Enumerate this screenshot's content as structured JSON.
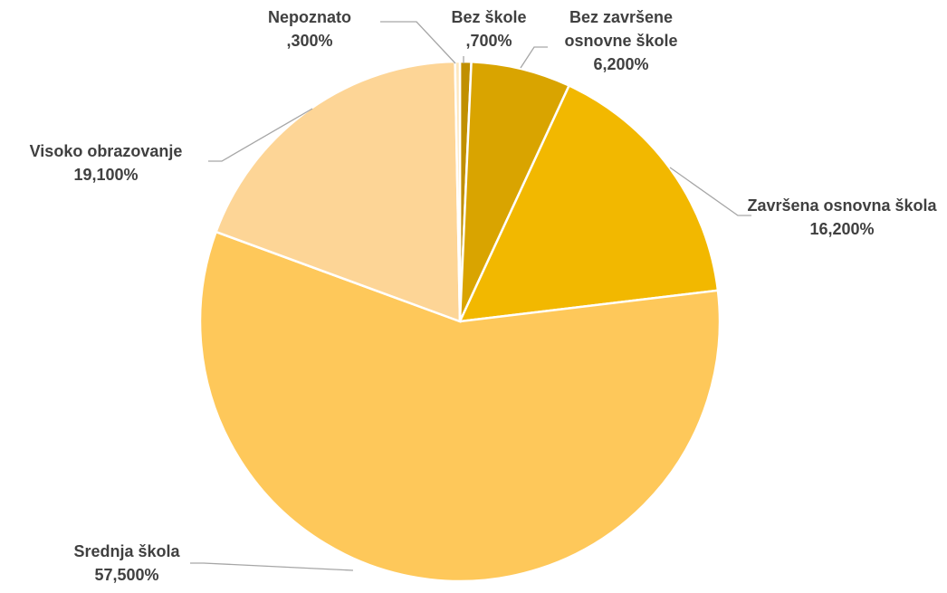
{
  "chart_data": {
    "type": "pie",
    "categories": [
      "Bez škole",
      "Bez završene osnovne škole",
      "Završena osnovna škola",
      "Srednja škola",
      "Visoko obrazovanje",
      "Nepoznato"
    ],
    "values": [
      0.7,
      6.2,
      16.2,
      57.5,
      19.1,
      0.3
    ],
    "value_labels": [
      ",700%",
      "6,200%",
      "16,200%",
      "57,500%",
      "19,100%",
      ",300%"
    ],
    "colors": [
      "#c08f00",
      "#d9a400",
      "#f2b800",
      "#fec85a",
      "#fdd596",
      "#fee7bd"
    ]
  }
}
